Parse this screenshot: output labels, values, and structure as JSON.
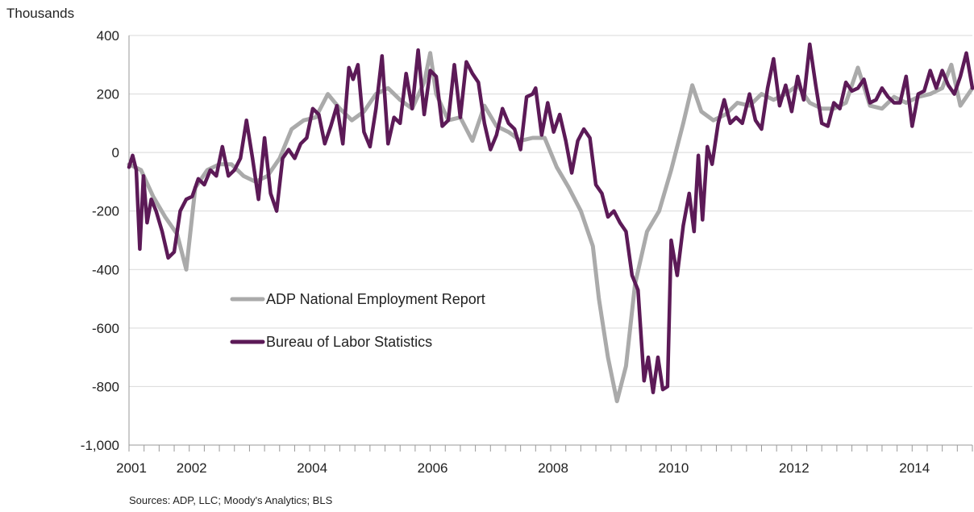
{
  "chart_data": {
    "type": "line",
    "unit_label": "Thousands",
    "ylim": [
      -1000,
      400
    ],
    "yticks": [
      400,
      200,
      0,
      -200,
      -400,
      -600,
      -800,
      -1000
    ],
    "ytick_labels": [
      "400",
      "200",
      "0",
      "-200",
      "-400",
      "-600",
      "-800",
      "-1,000"
    ],
    "xlim": [
      2001.0,
      2015.0
    ],
    "xtick_years": [
      2001,
      2002,
      2004,
      2006,
      2008,
      2010,
      2012,
      2014
    ],
    "xtick_labels": [
      "2001",
      "2002",
      "2004",
      "2006",
      "2008",
      "2010",
      "2012",
      "2014"
    ],
    "grid": "horizontal",
    "legend_position": "center-left",
    "source": "Sources: ADP, LLC; Moody's Analytics; BLS",
    "series": [
      {
        "name": "ADP National Employment Report",
        "color": "#aaaaaa",
        "points": [
          [
            2001.0,
            -40
          ],
          [
            2001.2,
            -60
          ],
          [
            2001.4,
            -150
          ],
          [
            2001.6,
            -220
          ],
          [
            2001.8,
            -280
          ],
          [
            2001.95,
            -400
          ],
          [
            2002.1,
            -120
          ],
          [
            2002.3,
            -60
          ],
          [
            2002.5,
            -40
          ],
          [
            2002.7,
            -40
          ],
          [
            2002.9,
            -80
          ],
          [
            2003.1,
            -100
          ],
          [
            2003.3,
            -80
          ],
          [
            2003.5,
            -20
          ],
          [
            2003.7,
            80
          ],
          [
            2003.9,
            110
          ],
          [
            2004.1,
            120
          ],
          [
            2004.3,
            200
          ],
          [
            2004.5,
            150
          ],
          [
            2004.7,
            110
          ],
          [
            2004.9,
            140
          ],
          [
            2005.1,
            200
          ],
          [
            2005.3,
            220
          ],
          [
            2005.5,
            180
          ],
          [
            2005.7,
            150
          ],
          [
            2005.9,
            240
          ],
          [
            2006.0,
            340
          ],
          [
            2006.1,
            200
          ],
          [
            2006.3,
            110
          ],
          [
            2006.5,
            120
          ],
          [
            2006.7,
            40
          ],
          [
            2006.9,
            160
          ],
          [
            2007.1,
            90
          ],
          [
            2007.3,
            70
          ],
          [
            2007.5,
            40
          ],
          [
            2007.7,
            50
          ],
          [
            2007.9,
            50
          ],
          [
            2008.1,
            -50
          ],
          [
            2008.3,
            -120
          ],
          [
            2008.5,
            -200
          ],
          [
            2008.7,
            -320
          ],
          [
            2008.8,
            -500
          ],
          [
            2008.95,
            -700
          ],
          [
            2009.1,
            -850
          ],
          [
            2009.25,
            -730
          ],
          [
            2009.4,
            -450
          ],
          [
            2009.6,
            -270
          ],
          [
            2009.8,
            -200
          ],
          [
            2010.0,
            -60
          ],
          [
            2010.2,
            100
          ],
          [
            2010.35,
            230
          ],
          [
            2010.5,
            140
          ],
          [
            2010.7,
            110
          ],
          [
            2010.9,
            130
          ],
          [
            2011.1,
            170
          ],
          [
            2011.3,
            160
          ],
          [
            2011.5,
            200
          ],
          [
            2011.7,
            180
          ],
          [
            2011.9,
            200
          ],
          [
            2012.1,
            230
          ],
          [
            2012.3,
            170
          ],
          [
            2012.5,
            150
          ],
          [
            2012.7,
            150
          ],
          [
            2012.9,
            170
          ],
          [
            2013.1,
            290
          ],
          [
            2013.3,
            160
          ],
          [
            2013.5,
            150
          ],
          [
            2013.7,
            190
          ],
          [
            2013.9,
            170
          ],
          [
            2014.1,
            190
          ],
          [
            2014.3,
            200
          ],
          [
            2014.5,
            220
          ],
          [
            2014.65,
            300
          ],
          [
            2014.8,
            160
          ],
          [
            2015.0,
            220
          ]
        ]
      },
      {
        "name": "Bureau of Labor Statistics",
        "color": "#5c1a57",
        "points": [
          [
            2001.0,
            -50
          ],
          [
            2001.06,
            -10
          ],
          [
            2001.12,
            -60
          ],
          [
            2001.18,
            -330
          ],
          [
            2001.24,
            -80
          ],
          [
            2001.3,
            -240
          ],
          [
            2001.37,
            -160
          ],
          [
            2001.45,
            -200
          ],
          [
            2001.55,
            -270
          ],
          [
            2001.65,
            -360
          ],
          [
            2001.75,
            -340
          ],
          [
            2001.85,
            -200
          ],
          [
            2001.95,
            -160
          ],
          [
            2002.05,
            -150
          ],
          [
            2002.15,
            -90
          ],
          [
            2002.25,
            -110
          ],
          [
            2002.35,
            -60
          ],
          [
            2002.45,
            -80
          ],
          [
            2002.55,
            20
          ],
          [
            2002.65,
            -80
          ],
          [
            2002.75,
            -60
          ],
          [
            2002.85,
            -20
          ],
          [
            2002.95,
            110
          ],
          [
            2003.05,
            -20
          ],
          [
            2003.15,
            -160
          ],
          [
            2003.25,
            50
          ],
          [
            2003.35,
            -140
          ],
          [
            2003.45,
            -200
          ],
          [
            2003.55,
            -20
          ],
          [
            2003.65,
            10
          ],
          [
            2003.75,
            -20
          ],
          [
            2003.85,
            30
          ],
          [
            2003.95,
            50
          ],
          [
            2004.05,
            150
          ],
          [
            2004.15,
            130
          ],
          [
            2004.25,
            30
          ],
          [
            2004.35,
            90
          ],
          [
            2004.45,
            160
          ],
          [
            2004.55,
            30
          ],
          [
            2004.65,
            290
          ],
          [
            2004.72,
            250
          ],
          [
            2004.8,
            300
          ],
          [
            2004.9,
            70
          ],
          [
            2005.0,
            20
          ],
          [
            2005.1,
            150
          ],
          [
            2005.2,
            330
          ],
          [
            2005.3,
            30
          ],
          [
            2005.4,
            120
          ],
          [
            2005.5,
            100
          ],
          [
            2005.6,
            270
          ],
          [
            2005.7,
            150
          ],
          [
            2005.8,
            350
          ],
          [
            2005.9,
            130
          ],
          [
            2006.0,
            280
          ],
          [
            2006.1,
            260
          ],
          [
            2006.2,
            90
          ],
          [
            2006.3,
            110
          ],
          [
            2006.4,
            300
          ],
          [
            2006.5,
            120
          ],
          [
            2006.6,
            310
          ],
          [
            2006.7,
            270
          ],
          [
            2006.8,
            240
          ],
          [
            2006.9,
            100
          ],
          [
            2007.0,
            10
          ],
          [
            2007.1,
            60
          ],
          [
            2007.2,
            150
          ],
          [
            2007.3,
            100
          ],
          [
            2007.4,
            80
          ],
          [
            2007.5,
            10
          ],
          [
            2007.6,
            190
          ],
          [
            2007.7,
            200
          ],
          [
            2007.75,
            220
          ],
          [
            2007.85,
            60
          ],
          [
            2007.95,
            170
          ],
          [
            2008.05,
            70
          ],
          [
            2008.15,
            130
          ],
          [
            2008.25,
            40
          ],
          [
            2008.35,
            -70
          ],
          [
            2008.45,
            40
          ],
          [
            2008.55,
            80
          ],
          [
            2008.65,
            50
          ],
          [
            2008.75,
            -110
          ],
          [
            2008.85,
            -140
          ],
          [
            2008.95,
            -220
          ],
          [
            2009.05,
            -200
          ],
          [
            2009.15,
            -240
          ],
          [
            2009.25,
            -270
          ],
          [
            2009.35,
            -420
          ],
          [
            2009.45,
            -470
          ],
          [
            2009.55,
            -780
          ],
          [
            2009.62,
            -700
          ],
          [
            2009.7,
            -820
          ],
          [
            2009.78,
            -700
          ],
          [
            2009.86,
            -810
          ],
          [
            2009.94,
            -800
          ],
          [
            2010.0,
            -300
          ],
          [
            2010.1,
            -420
          ],
          [
            2010.2,
            -250
          ],
          [
            2010.3,
            -140
          ],
          [
            2010.38,
            -270
          ],
          [
            2010.45,
            -10
          ],
          [
            2010.52,
            -230
          ],
          [
            2010.6,
            20
          ],
          [
            2010.68,
            -40
          ],
          [
            2010.78,
            100
          ],
          [
            2010.88,
            180
          ],
          [
            2010.98,
            100
          ],
          [
            2011.08,
            120
          ],
          [
            2011.18,
            100
          ],
          [
            2011.3,
            200
          ],
          [
            2011.4,
            110
          ],
          [
            2011.5,
            80
          ],
          [
            2011.6,
            220
          ],
          [
            2011.7,
            320
          ],
          [
            2011.8,
            160
          ],
          [
            2011.9,
            230
          ],
          [
            2012.0,
            140
          ],
          [
            2012.1,
            260
          ],
          [
            2012.2,
            180
          ],
          [
            2012.3,
            370
          ],
          [
            2012.4,
            230
          ],
          [
            2012.5,
            100
          ],
          [
            2012.6,
            90
          ],
          [
            2012.7,
            170
          ],
          [
            2012.8,
            150
          ],
          [
            2012.9,
            240
          ],
          [
            2013.0,
            210
          ],
          [
            2013.1,
            220
          ],
          [
            2013.2,
            250
          ],
          [
            2013.3,
            170
          ],
          [
            2013.4,
            180
          ],
          [
            2013.5,
            220
          ],
          [
            2013.6,
            190
          ],
          [
            2013.7,
            170
          ],
          [
            2013.8,
            170
          ],
          [
            2013.9,
            260
          ],
          [
            2014.0,
            90
          ],
          [
            2014.1,
            200
          ],
          [
            2014.2,
            210
          ],
          [
            2014.3,
            280
          ],
          [
            2014.4,
            220
          ],
          [
            2014.5,
            280
          ],
          [
            2014.6,
            230
          ],
          [
            2014.7,
            200
          ],
          [
            2014.8,
            260
          ],
          [
            2014.9,
            340
          ],
          [
            2015.0,
            220
          ]
        ]
      }
    ]
  }
}
